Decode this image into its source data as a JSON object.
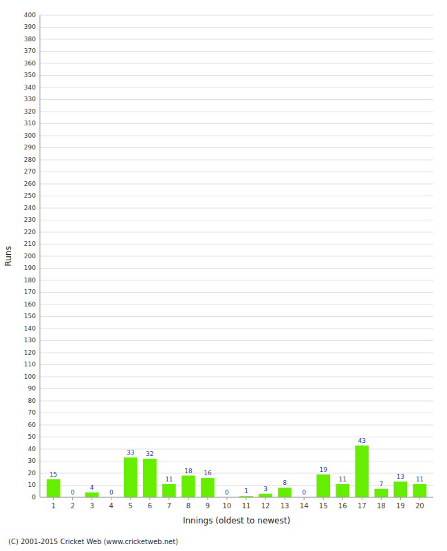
{
  "chart_data": {
    "type": "bar",
    "x": [
      1,
      2,
      3,
      4,
      5,
      6,
      7,
      8,
      9,
      10,
      11,
      12,
      13,
      14,
      15,
      16,
      17,
      18,
      19,
      20
    ],
    "values": [
      15,
      0,
      4,
      0,
      33,
      32,
      11,
      18,
      16,
      0,
      1,
      3,
      8,
      0,
      19,
      11,
      43,
      7,
      13,
      11
    ],
    "color": "#66ee00",
    "xlabel": "Innings (oldest to newest)",
    "ylabel": "Runs",
    "xlim": [
      0.3,
      20.7
    ],
    "xticks": [
      1,
      2,
      3,
      4,
      5,
      6,
      7,
      8,
      9,
      10,
      11,
      12,
      13,
      14,
      15,
      16,
      17,
      18,
      19,
      20
    ],
    "ylim": [
      0,
      400
    ],
    "yticks": [
      0,
      10,
      20,
      30,
      40,
      50,
      60,
      70,
      80,
      90,
      100,
      110,
      120,
      130,
      140,
      150,
      160,
      170,
      180,
      190,
      200,
      210,
      220,
      230,
      240,
      250,
      260,
      270,
      280,
      290,
      300,
      310,
      320,
      330,
      340,
      350,
      360,
      370,
      380,
      390,
      400
    ],
    "grid": true,
    "data_labels": true,
    "annotations": [
      "(C) 2001-2015 Cricket Web (www.cricketweb.net)"
    ]
  }
}
